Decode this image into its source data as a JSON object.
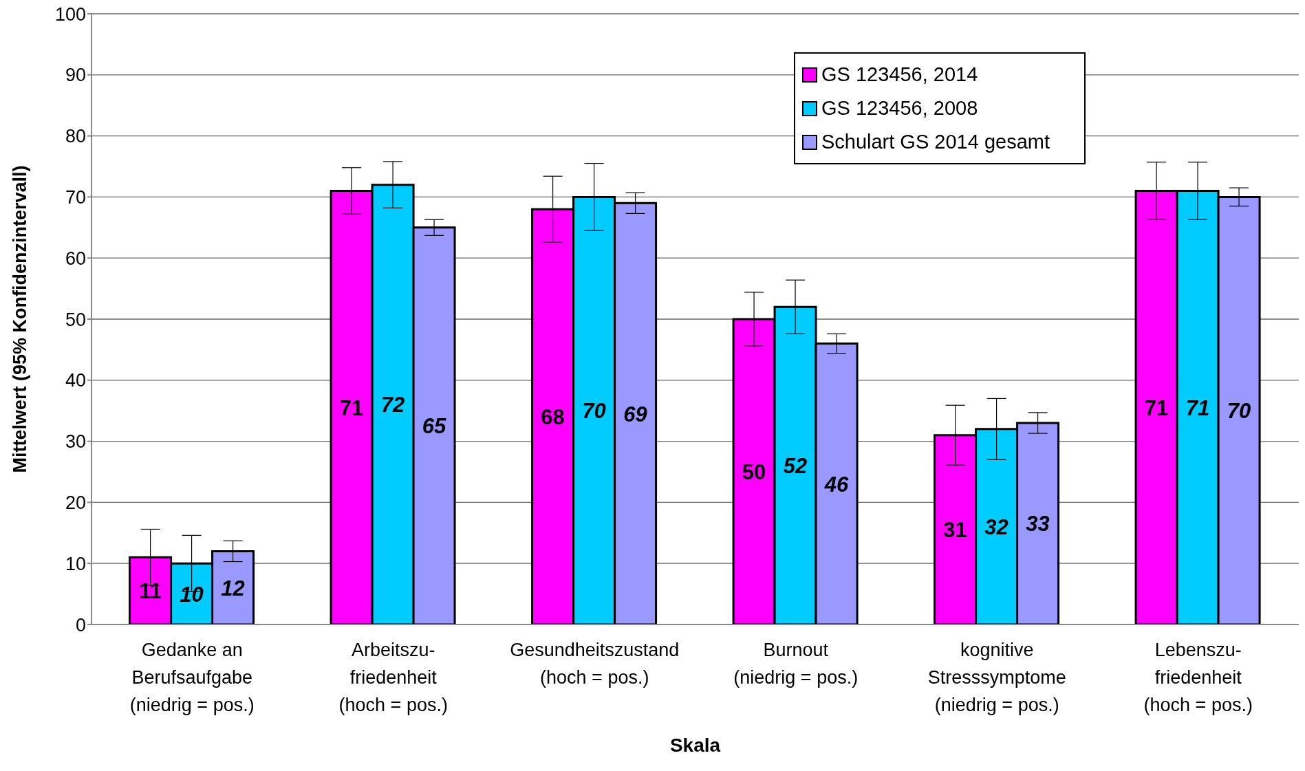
{
  "chart_data": {
    "type": "bar",
    "xlabel": "Skala",
    "ylabel": "Mittelwert (95% Konfidenzintervall)",
    "categories": [
      "Gedanke an\nBerufsaufgabe\n(niedrig = pos.)",
      "Arbeitszu-\nfriedenheit\n(hoch = pos.)",
      "Gesundheitszustand\n(hoch = pos.)",
      "Burnout\n(niedrig = pos.)",
      "kognitive\nStresssymptome\n(niedrig = pos.)",
      "Lebenszu-\nfriedenheit\n(hoch = pos.)"
    ],
    "series": [
      {
        "name": "GS 123456, 2014",
        "color": "#ff00ff",
        "values": [
          11,
          71,
          68,
          50,
          31,
          71
        ],
        "errors": [
          4.6,
          3.8,
          5.4,
          4.4,
          4.9,
          4.7
        ]
      },
      {
        "name": "GS 123456, 2008",
        "color": "#00ccff",
        "values": [
          10,
          72,
          70,
          52,
          32,
          71
        ],
        "errors": [
          4.6,
          3.8,
          5.5,
          4.4,
          5.0,
          4.7
        ]
      },
      {
        "name": "Schulart GS 2014 gesamt",
        "color": "#9999ff",
        "values": [
          12,
          65,
          69,
          46,
          33,
          70
        ],
        "errors": [
          1.7,
          1.3,
          1.7,
          1.6,
          1.7,
          1.5
        ]
      }
    ],
    "ylim": [
      0,
      100
    ],
    "yticks": [
      0,
      10,
      20,
      30,
      40,
      50,
      60,
      70,
      80,
      90,
      100
    ],
    "grid": "y",
    "legend": "top right",
    "data_labels": true
  }
}
